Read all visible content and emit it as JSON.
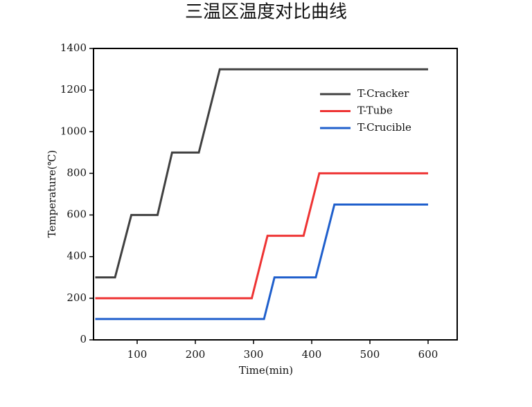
{
  "chart_data": {
    "type": "line",
    "title": "三温区温度对比曲线",
    "x_label": "Time(min)",
    "y_label": "Temperature(℃)",
    "xlim": [
      25,
      650
    ],
    "ylim": [
      0,
      1400
    ],
    "xticks": [
      100,
      200,
      300,
      400,
      500,
      600
    ],
    "yticks": [
      0,
      200,
      400,
      600,
      800,
      1000,
      1200,
      1400
    ],
    "legend": "upper right",
    "series": [
      {
        "name": "T-Cracker",
        "color": "#404040",
        "x": [
          28,
          62,
          90,
          135,
          160,
          206,
          242,
          600
        ],
        "values": [
          300,
          300,
          600,
          600,
          900,
          900,
          1300,
          1300
        ]
      },
      {
        "name": "T-Tube",
        "color": "#ee3333",
        "x": [
          28,
          297,
          324,
          386,
          413,
          600
        ],
        "values": [
          200,
          200,
          500,
          500,
          800,
          800
        ]
      },
      {
        "name": "T-Crucible",
        "color": "#1f5fcc",
        "x": [
          28,
          318,
          336,
          407,
          439,
          600
        ],
        "values": [
          100,
          100,
          300,
          300,
          650,
          650
        ]
      }
    ]
  }
}
